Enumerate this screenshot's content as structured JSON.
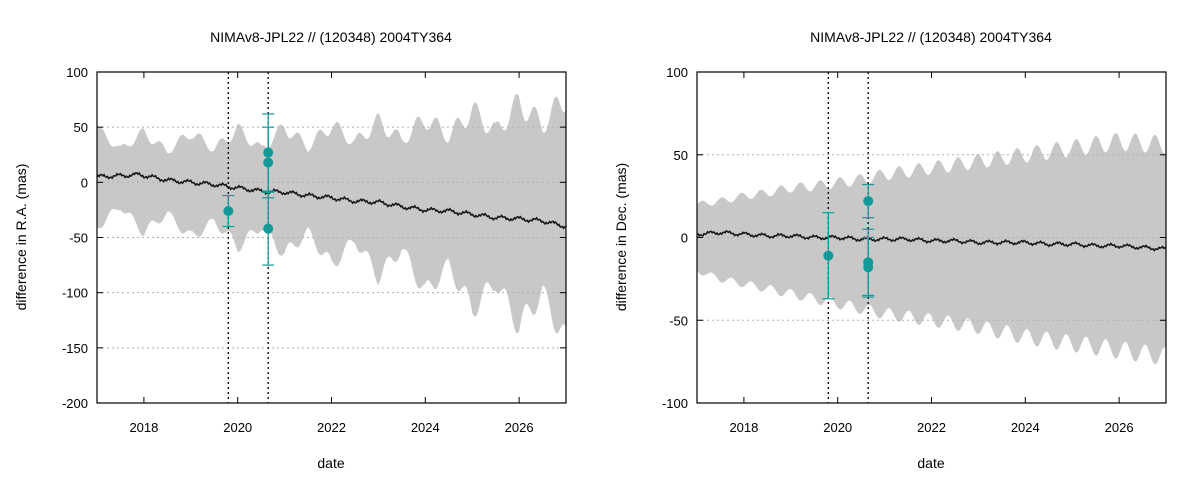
{
  "colors": {
    "band": "#c8c8c8",
    "line": "#1a1a1a",
    "points": "#13999a",
    "axis": "#000000",
    "grid": "#b0b0b0"
  },
  "chart_data": [
    {
      "type": "line",
      "title": "NIMAv8-JPL22 // (120348) 2004TY364",
      "xlabel": "date",
      "ylabel": "difference in R.A. (mas)",
      "xlim": [
        2017.0,
        2027.0
      ],
      "ylim": [
        -200,
        100
      ],
      "xticks": [
        2018,
        2020,
        2022,
        2024,
        2026
      ],
      "xtick_labels": [
        "2018",
        "2020",
        "2022",
        "2024",
        "2026"
      ],
      "yticks": [
        100,
        50,
        0,
        -50,
        -100,
        -150,
        -200
      ],
      "ytick_labels": [
        "100",
        "50",
        "0",
        "-50",
        "-100",
        "-150",
        "-200"
      ],
      "grid": true,
      "vlines": [
        2019.8,
        2020.65
      ],
      "series": [
        {
          "name": "mean difference",
          "x": [
            2017.0,
            2017.5,
            2017.9,
            2018.5,
            2019.0,
            2019.5,
            2020.0,
            2020.5,
            2021.0,
            2021.5,
            2022.0,
            2022.5,
            2023.0,
            2023.5,
            2024.0,
            2024.5,
            2025.0,
            2025.5,
            2026.0,
            2026.5,
            2027.0
          ],
          "values": [
            5,
            6,
            7,
            2,
            0,
            -2,
            -5,
            -8,
            -9,
            -12,
            -14,
            -17,
            -18,
            -22,
            -25,
            -26,
            -29,
            -32,
            -33,
            -35,
            -40
          ]
        },
        {
          "name": "uncertainty band",
          "x": [
            2017.0,
            2017.5,
            2018.0,
            2018.5,
            2019.0,
            2019.5,
            2020.0,
            2020.5,
            2021.0,
            2021.5,
            2022.0,
            2022.5,
            2023.0,
            2023.5,
            2024.0,
            2024.5,
            2025.0,
            2025.5,
            2026.0,
            2026.5,
            2027.0
          ],
          "upper": [
            48,
            30,
            45,
            28,
            45,
            30,
            48,
            30,
            50,
            32,
            52,
            36,
            55,
            38,
            58,
            42,
            65,
            46,
            72,
            52,
            78
          ],
          "lower": [
            -40,
            -22,
            -45,
            -28,
            -50,
            -35,
            -58,
            -40,
            -65,
            -45,
            -75,
            -52,
            -85,
            -60,
            -100,
            -75,
            -115,
            -90,
            -130,
            -100,
            -145
          ],
          "amplitude": 0.34
        },
        {
          "name": "observations",
          "points": [
            {
              "x": 2019.8,
              "y": -26,
              "err": 14
            },
            {
              "x": 2020.65,
              "y": 27,
              "err": 35
            },
            {
              "x": 2020.65,
              "y": 18,
              "err": 32
            },
            {
              "x": 2020.65,
              "y": -42,
              "err": 33
            }
          ]
        }
      ]
    },
    {
      "type": "line",
      "title": "NIMAv8-JPL22 // (120348) 2004TY364",
      "xlabel": "date",
      "ylabel": "difference in Dec. (mas)",
      "xlim": [
        2017.0,
        2027.0
      ],
      "ylim": [
        -100,
        100
      ],
      "xticks": [
        2018,
        2020,
        2022,
        2024,
        2026
      ],
      "xtick_labels": [
        "2018",
        "2020",
        "2022",
        "2024",
        "2026"
      ],
      "yticks": [
        100,
        50,
        0,
        -50,
        -100
      ],
      "ytick_labels": [
        "100",
        "50",
        "0",
        "-50",
        "-100"
      ],
      "grid": true,
      "vlines": [
        2019.8,
        2020.65
      ],
      "series": [
        {
          "name": "mean difference",
          "x": [
            2017.0,
            2017.5,
            2018.0,
            2018.5,
            2019.0,
            2019.5,
            2020.0,
            2020.5,
            2021.0,
            2021.5,
            2022.0,
            2022.5,
            2023.0,
            2023.5,
            2024.0,
            2024.5,
            2025.0,
            2025.5,
            2026.0,
            2026.5,
            2027.0
          ],
          "values": [
            2,
            3,
            2,
            1,
            1,
            0,
            0,
            -1,
            -1,
            -1,
            -2,
            -2,
            -3,
            -3,
            -3,
            -4,
            -4,
            -5,
            -5,
            -6,
            -7
          ]
        },
        {
          "name": "uncertainty band",
          "x": [
            2017.0,
            2017.5,
            2018.0,
            2018.5,
            2019.0,
            2019.5,
            2020.0,
            2020.5,
            2021.0,
            2021.5,
            2022.0,
            2022.5,
            2023.0,
            2023.5,
            2024.0,
            2024.5,
            2025.0,
            2025.5,
            2026.0,
            2026.5,
            2027.0
          ],
          "upper": [
            20,
            22,
            25,
            27,
            30,
            31,
            33,
            35,
            38,
            40,
            42,
            44,
            46,
            48,
            50,
            52,
            54,
            56,
            58,
            57,
            56
          ],
          "lower": [
            -20,
            -25,
            -28,
            -31,
            -34,
            -37,
            -40,
            -43,
            -46,
            -48,
            -50,
            -52,
            -54,
            -57,
            -60,
            -62,
            -64,
            -66,
            -68,
            -70,
            -72
          ],
          "amplitude": 0.25
        },
        {
          "name": "observations",
          "points": [
            {
              "x": 2019.8,
              "y": -11,
              "err": 26
            },
            {
              "x": 2020.65,
              "y": 22,
              "err": 10
            },
            {
              "x": 2020.65,
              "y": -15,
              "err": 20
            },
            {
              "x": 2020.65,
              "y": -18,
              "err": 18
            }
          ]
        }
      ]
    }
  ]
}
